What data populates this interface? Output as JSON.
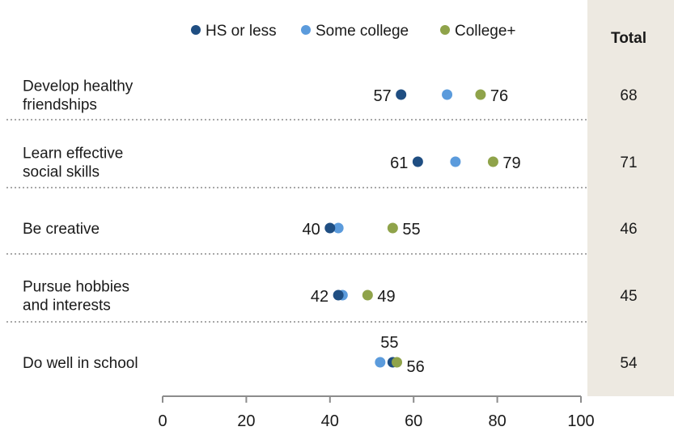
{
  "chart_data": {
    "type": "scatter",
    "categories": [
      [
        "Develop healthy",
        "friendships"
      ],
      [
        "Learn effective",
        "social skills"
      ],
      [
        "Be creative"
      ],
      [
        "Pursue hobbies",
        "and interests"
      ],
      [
        "Do well in school"
      ]
    ],
    "series": [
      {
        "name": "HS or less",
        "color": "#1f4e82",
        "values": [
          57,
          61,
          40,
          42,
          55
        ]
      },
      {
        "name": "Some college",
        "color": "#5b9bdc",
        "values": [
          68,
          70,
          42,
          43,
          52
        ]
      },
      {
        "name": "College+",
        "color": "#8fa34a",
        "values": [
          76,
          79,
          55,
          49,
          56
        ]
      }
    ],
    "labels": [
      {
        "left": "57",
        "right": "76"
      },
      {
        "left": "61",
        "right": "79"
      },
      {
        "left": "40",
        "right": "55"
      },
      {
        "left": "42",
        "right": "49"
      },
      {
        "top": "55",
        "right": "56"
      }
    ],
    "total": {
      "header": "Total",
      "values": [
        "68",
        "71",
        "46",
        "45",
        "54"
      ]
    },
    "xlim": [
      0,
      100
    ],
    "xticks": [
      0,
      20,
      40,
      60,
      80,
      100
    ],
    "grid": false,
    "legend_position": "top"
  },
  "colors": {
    "total_column_bg": "#ede9e1",
    "separator": "#8c8c8c",
    "axis": "#8c8c8c"
  }
}
